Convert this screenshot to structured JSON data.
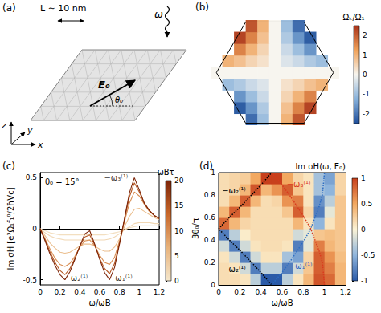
{
  "panel_a": {
    "label": "(a)",
    "size_label": "L ∼ 10 nm",
    "frequency_label": "ω",
    "field_label": "E₀",
    "angle_label": "θ₀",
    "axis_labels": [
      "x",
      "y",
      "z"
    ]
  },
  "chart_data": [
    {
      "panel": "(b)",
      "type": "heatmap",
      "tick_labels": false,
      "xlim": [
        -1.1,
        1.1
      ],
      "ylim": [
        -0.9,
        0.9
      ],
      "x": [
        -1,
        -0.8,
        -0.6,
        -0.4,
        -0.2,
        0,
        0.2,
        0.4,
        0.6,
        0.8,
        1
      ],
      "y": [
        -0.8,
        -0.6,
        -0.4,
        -0.2,
        0,
        0.2,
        0.4,
        0.6,
        0.8
      ],
      "values": [
        [
          null,
          null,
          null,
          -2.1,
          -1.0,
          0,
          1.0,
          2.1,
          null,
          null,
          null
        ],
        [
          null,
          null,
          -2.3,
          -1.6,
          -0.8,
          0,
          0.8,
          1.6,
          2.3,
          null,
          null
        ],
        [
          null,
          null,
          -1.6,
          -1.0,
          -0.5,
          0,
          0.5,
          1.0,
          1.6,
          null,
          null
        ],
        [
          null,
          -1.0,
          -0.8,
          -0.5,
          -0.3,
          0,
          0.3,
          0.5,
          0.8,
          1.0,
          null
        ],
        [
          0,
          0,
          0,
          0,
          0,
          0,
          0,
          0,
          0,
          0,
          0
        ],
        [
          null,
          1.0,
          0.8,
          0.5,
          0.3,
          0,
          -0.3,
          -0.5,
          -0.8,
          -1.0,
          null
        ],
        [
          null,
          null,
          1.6,
          1.0,
          0.5,
          0,
          -0.5,
          -1.0,
          -1.6,
          null,
          null
        ],
        [
          null,
          null,
          2.3,
          1.6,
          0.8,
          0,
          -0.8,
          -1.6,
          -2.3,
          null,
          null
        ],
        [
          null,
          null,
          null,
          2.1,
          1.0,
          0,
          -1.0,
          -2.1,
          null,
          null,
          null
        ]
      ],
      "boundary": [
        [
          1,
          0
        ],
        [
          0.5,
          0.866
        ],
        [
          -0.5,
          0.866
        ],
        [
          -1,
          0
        ],
        [
          -0.5,
          -0.866
        ],
        [
          0.5,
          -0.866
        ],
        [
          1,
          0
        ]
      ],
      "colorbar": {
        "label": "Ωₖ/Ω₁",
        "range": [
          -2.5,
          2.5
        ],
        "ticks": [
          -2,
          -1,
          0,
          1,
          2
        ],
        "colors": [
          "#1f4e9a",
          "#86b0da",
          "#f7f5ef",
          "#f0a25a",
          "#a8321a"
        ]
      }
    },
    {
      "panel": "(c)",
      "type": "line",
      "xlabel": "ω/ωB",
      "ylabel": "Im σH [e³Ω₁f₁⁰/2ħVc]",
      "xlim": [
        0,
        1.2
      ],
      "xticks": [
        0,
        0.2,
        0.4,
        0.6,
        0.8,
        1,
        1.2
      ],
      "ylim": [
        -0.55,
        0.55
      ],
      "yticks": [
        -0.5,
        0,
        0.5
      ],
      "x": [
        0,
        0.05,
        0.1,
        0.15,
        0.2,
        0.25,
        0.3,
        0.35,
        0.4,
        0.45,
        0.5,
        0.55,
        0.6,
        0.65,
        0.7,
        0.75,
        0.8,
        0.85,
        0.9,
        0.95,
        1,
        1.05,
        1.1,
        1.15,
        1.2
      ],
      "series": [
        {
          "colorbar_value": 1,
          "values": [
            0,
            -0.02,
            -0.04,
            -0.05,
            -0.06,
            -0.06,
            -0.06,
            -0.06,
            -0.06,
            -0.06,
            -0.06,
            -0.06,
            -0.06,
            -0.06,
            -0.05,
            -0.04,
            -0.03,
            -0.01,
            0.01,
            0.02,
            0.03,
            0.03,
            0.03,
            0.03,
            0.03
          ]
        },
        {
          "colorbar_value": 2,
          "values": [
            0,
            -0.04,
            -0.07,
            -0.09,
            -0.1,
            -0.11,
            -0.11,
            -0.11,
            -0.11,
            -0.11,
            -0.11,
            -0.11,
            -0.11,
            -0.11,
            -0.1,
            -0.08,
            -0.05,
            -0.01,
            0.02,
            0.05,
            0.06,
            0.06,
            0.06,
            0.05,
            0.05
          ]
        },
        {
          "colorbar_value": 5,
          "values": [
            0,
            -0.07,
            -0.14,
            -0.19,
            -0.23,
            -0.24,
            -0.23,
            -0.2,
            -0.17,
            -0.15,
            -0.15,
            -0.17,
            -0.2,
            -0.22,
            -0.22,
            -0.18,
            -0.1,
            0.02,
            0.12,
            0.19,
            0.2,
            0.17,
            0.14,
            0.11,
            0.09
          ]
        },
        {
          "colorbar_value": 10,
          "values": [
            0,
            -0.1,
            -0.2,
            -0.29,
            -0.35,
            -0.37,
            -0.34,
            -0.27,
            -0.18,
            -0.12,
            -0.11,
            -0.17,
            -0.26,
            -0.33,
            -0.35,
            -0.28,
            -0.12,
            0.07,
            0.25,
            0.36,
            0.32,
            0.24,
            0.17,
            0.13,
            0.1
          ]
        },
        {
          "colorbar_value": 15,
          "values": [
            0,
            -0.11,
            -0.23,
            -0.33,
            -0.41,
            -0.45,
            -0.39,
            -0.29,
            -0.17,
            -0.08,
            -0.06,
            -0.16,
            -0.29,
            -0.39,
            -0.44,
            -0.34,
            -0.14,
            0.09,
            0.31,
            0.45,
            0.36,
            0.25,
            0.18,
            0.13,
            0.1
          ]
        },
        {
          "colorbar_value": 20,
          "values": [
            0,
            -0.12,
            -0.25,
            -0.36,
            -0.45,
            -0.5,
            -0.42,
            -0.3,
            -0.17,
            -0.05,
            -0.02,
            -0.15,
            -0.3,
            -0.43,
            -0.5,
            -0.38,
            -0.15,
            0.1,
            0.35,
            0.5,
            0.38,
            0.25,
            0.18,
            0.13,
            0.1
          ]
        }
      ],
      "annotations": [
        {
          "text": "θ₀ = 15°"
        },
        {
          "text": "−ω₃⁽¹⁾",
          "x": 0.95,
          "y": 0.5
        },
        {
          "text": "ω₂⁽¹⁾",
          "x": 0.25,
          "y": -0.5
        },
        {
          "text": "ω₁⁽¹⁾",
          "x": 0.7,
          "y": -0.5
        }
      ],
      "colorbar": {
        "label": "ωBτ",
        "range": [
          0,
          20
        ],
        "ticks": [
          0,
          5,
          10,
          15,
          20
        ],
        "colors": [
          "#f5e7cc",
          "#e8b27a",
          "#c8672a",
          "#7d2508"
        ]
      }
    },
    {
      "panel": "(d)",
      "type": "heatmap",
      "title": "Im σH(ω, E₀)",
      "xlabel": "ω/ωB",
      "ylabel": "3θ₀/π",
      "xlim": [
        0,
        1.2
      ],
      "xticks": [
        0,
        0.2,
        0.4,
        0.6,
        0.8,
        1,
        1.2
      ],
      "ylim": [
        0,
        1
      ],
      "yticks": [
        0,
        0.2,
        0.4,
        0.6,
        0.8,
        1
      ],
      "x": [
        0.05,
        0.15,
        0.25,
        0.35,
        0.45,
        0.55,
        0.65,
        0.75,
        0.85,
        0.95,
        1.05,
        1.15
      ],
      "y": [
        0.05,
        0.15,
        0.25,
        0.35,
        0.45,
        0.55,
        0.65,
        0.75,
        0.85,
        0.95
      ],
      "values": [
        [
          0.15,
          0.15,
          0.1,
          -0.3,
          -1,
          -1,
          -0.3,
          0.1,
          0.4,
          0.9,
          0.8,
          0.4
        ],
        [
          0.15,
          0.1,
          -0.2,
          -0.8,
          -0.3,
          -0.3,
          -0.8,
          -0.2,
          0.3,
          0.85,
          0.7,
          0.4
        ],
        [
          0.1,
          -0.2,
          -0.8,
          -0.2,
          0.1,
          0.1,
          -0.4,
          -0.6,
          0.2,
          0.85,
          0.6,
          0.35
        ],
        [
          -0.2,
          -0.8,
          -0.2,
          0.1,
          0.15,
          0.15,
          0.1,
          -0.8,
          -0.1,
          0.7,
          0.4,
          0.3
        ],
        [
          -0.8,
          -0.3,
          0.05,
          0.15,
          0.15,
          0.15,
          0.15,
          -0.2,
          -0.1,
          0.3,
          0.35,
          0.3
        ],
        [
          0.8,
          0.4,
          0.2,
          0.15,
          0.15,
          0.15,
          0.15,
          0.4,
          0.1,
          -0.5,
          0.1,
          0.3
        ],
        [
          0.4,
          0.85,
          0.4,
          0.15,
          0.15,
          0.15,
          0.3,
          0.85,
          0.2,
          -0.8,
          -0.1,
          0.3
        ],
        [
          0.15,
          0.4,
          0.85,
          0.4,
          0.15,
          0.2,
          0.6,
          0.7,
          0.1,
          -0.7,
          -0.3,
          0.3
        ],
        [
          0.15,
          0.2,
          0.4,
          0.9,
          0.4,
          0.6,
          0.85,
          0.3,
          0.1,
          -0.4,
          -0.5,
          0.2
        ],
        [
          0.15,
          0.2,
          0.25,
          0.5,
          1,
          1,
          0.5,
          0.2,
          0.1,
          -0.4,
          -0.6,
          0.2
        ]
      ],
      "series": [
        {
          "name": "ω₂⁽¹⁾",
          "color": "#000000",
          "line_style": "dotted",
          "x": [
            0.5,
            0.41,
            0.31,
            0.21,
            0.1,
            0
          ],
          "y": [
            0,
            0.1,
            0.2,
            0.3,
            0.4,
            0.5
          ]
        },
        {
          "name": "−ω₂⁽¹⁾",
          "color": "#000000",
          "line_style": "dotted",
          "x": [
            0,
            0.1,
            0.21,
            0.31,
            0.41,
            0.5
          ],
          "y": [
            0.5,
            0.6,
            0.7,
            0.8,
            0.9,
            1
          ]
        },
        {
          "name": "ω₁⁽¹⁾",
          "color": "#2b6cc4",
          "line_style": "dotted",
          "x": [
            0.5,
            0.59,
            0.67,
            0.74,
            0.81,
            0.87,
            0.91,
            0.95,
            0.98,
            0.99,
            1
          ],
          "y": [
            0,
            0.1,
            0.2,
            0.3,
            0.4,
            0.5,
            0.6,
            0.7,
            0.8,
            0.9,
            1
          ]
        },
        {
          "name": "−ω₃⁽¹⁾",
          "color": "#d93a1e",
          "line_style": "dotted",
          "x": [
            1,
            0.99,
            0.98,
            0.95,
            0.91,
            0.87,
            0.81,
            0.74,
            0.67,
            0.59,
            0.5
          ],
          "y": [
            0,
            0.1,
            0.2,
            0.3,
            0.4,
            0.5,
            0.6,
            0.7,
            0.8,
            0.9,
            1
          ]
        }
      ],
      "colorbar": {
        "range": [
          -1,
          1
        ],
        "ticks": [
          -1,
          -0.5,
          0,
          0.5,
          1
        ],
        "colors": [
          "#2a5aa8",
          "#8fb5dc",
          "#fbf3d6",
          "#f2a860",
          "#c8401c"
        ]
      }
    }
  ]
}
